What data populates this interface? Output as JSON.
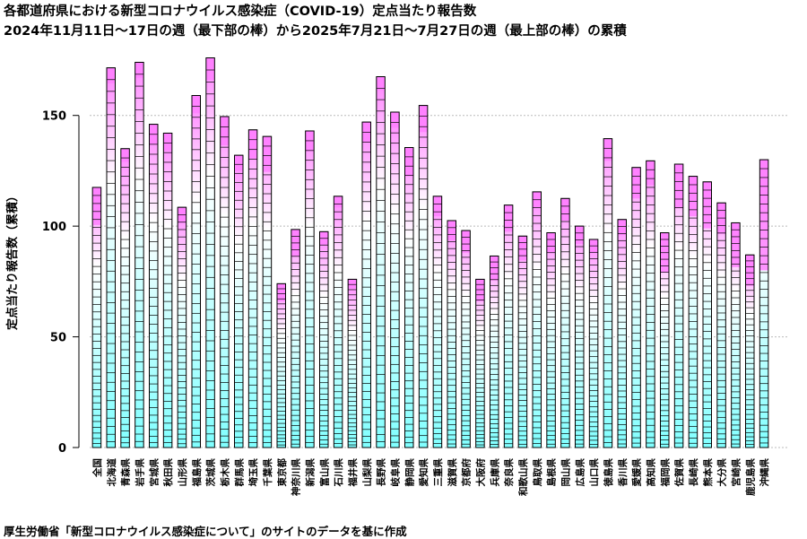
{
  "chart_data": {
    "type": "bar",
    "title": "各都道府県における新型コロナウイルス感染症（COVID-19）定点当たり報告数",
    "subtitle": "2024年11月11日～17日の週（最下部の棒）から2025年7月21日～7月27日の週（最上部の棒）の累積",
    "xlabel": "",
    "ylabel": "定点当たり報告数（累積）",
    "ylim": [
      0,
      175
    ],
    "yticks": [
      0,
      50,
      100,
      150
    ],
    "grid": true,
    "stacked": true,
    "categories": [
      "全国",
      "北海道",
      "青森県",
      "岩手県",
      "宮城県",
      "秋田県",
      "山形県",
      "福島県",
      "茨城県",
      "栃木県",
      "群馬県",
      "埼玉県",
      "千葉県",
      "東京都",
      "神奈川県",
      "新潟県",
      "富山県",
      "石川県",
      "福井県",
      "山梨県",
      "長野県",
      "岐阜県",
      "静岡県",
      "愛知県",
      "三重県",
      "滋賀県",
      "京都府",
      "大阪府",
      "兵庫県",
      "奈良県",
      "和歌山県",
      "鳥取県",
      "島根県",
      "岡山県",
      "広島県",
      "山口県",
      "徳島県",
      "香川県",
      "愛媛県",
      "高知県",
      "福岡県",
      "佐賀県",
      "長崎県",
      "熊本県",
      "大分県",
      "宮崎県",
      "鹿児島県",
      "沖縄県"
    ],
    "values": [
      117.5,
      171.5,
      135,
      174,
      146,
      142,
      108.5,
      159,
      176,
      149.5,
      132,
      143.5,
      140.5,
      74,
      98.5,
      143,
      97.5,
      113.5,
      76,
      147,
      167.5,
      151.5,
      135.5,
      154.5,
      113.5,
      102.5,
      98,
      76,
      86.5,
      109.5,
      95.5,
      115.5,
      97,
      112.5,
      100,
      94,
      139.5,
      103,
      126.5,
      129.5,
      97,
      128,
      122.5,
      120,
      110.5,
      101.5,
      87,
      130
    ],
    "recent_portion": [
      17,
      7,
      6,
      7,
      9,
      8,
      7,
      8,
      10,
      13,
      7,
      13,
      16,
      8,
      12,
      9,
      6,
      5,
      4,
      9,
      6,
      7,
      13,
      12,
      9,
      9,
      10,
      10,
      11,
      12,
      11,
      7,
      9,
      10,
      8,
      6,
      10,
      7,
      14,
      11,
      18,
      20,
      18,
      21,
      14,
      20,
      14,
      50
    ],
    "colors": {
      "early": "#80ffff",
      "late": "#ff80ff",
      "stroke": "#000000",
      "grid": "#bbbbbb"
    }
  },
  "caption": "厚生労働省「新型コロナウイルス感染症について」のサイトのデータを基に作成"
}
